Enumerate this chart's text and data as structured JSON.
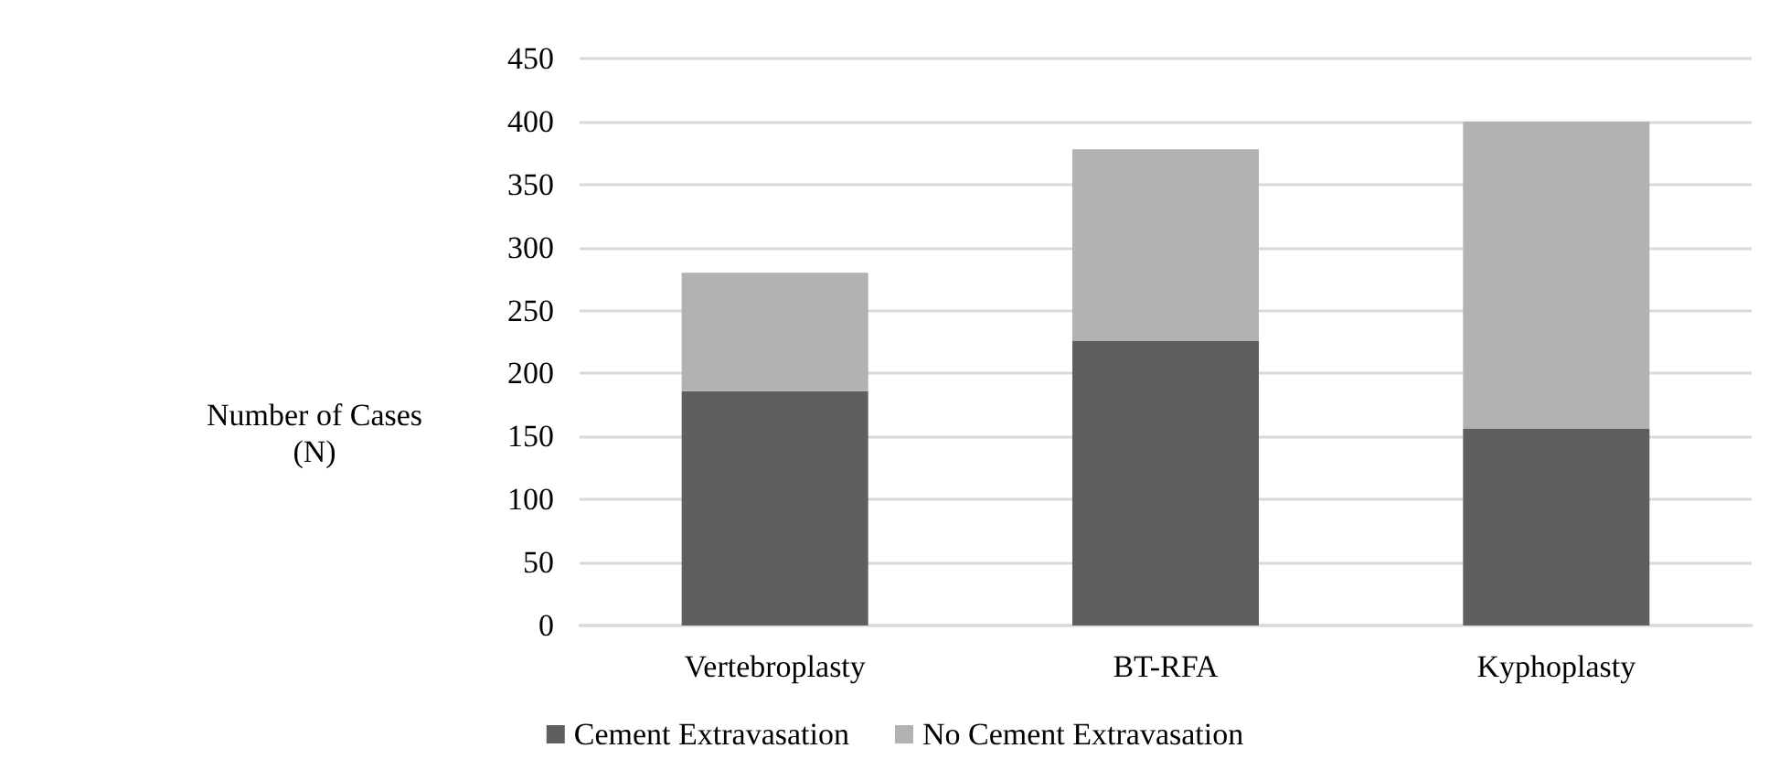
{
  "chart_data": {
    "type": "bar",
    "stacked": true,
    "ylabel": "Number of Cases\n(N)",
    "categories": [
      "Vertebroplasty",
      "BT-RFA",
      "Kyphoplasty"
    ],
    "series": [
      {
        "name": "Cement Extravasation",
        "color": "#5f5f5f",
        "values": [
          186,
          226,
          156
        ]
      },
      {
        "name": "No Cement Extravasation",
        "color": "#b2b2b2",
        "values": [
          94,
          152,
          244
        ]
      }
    ],
    "ylim": [
      0,
      450
    ],
    "yticks": [
      0,
      50,
      100,
      150,
      200,
      250,
      300,
      350,
      400,
      450
    ],
    "grid": "y",
    "legend": "bottom"
  }
}
